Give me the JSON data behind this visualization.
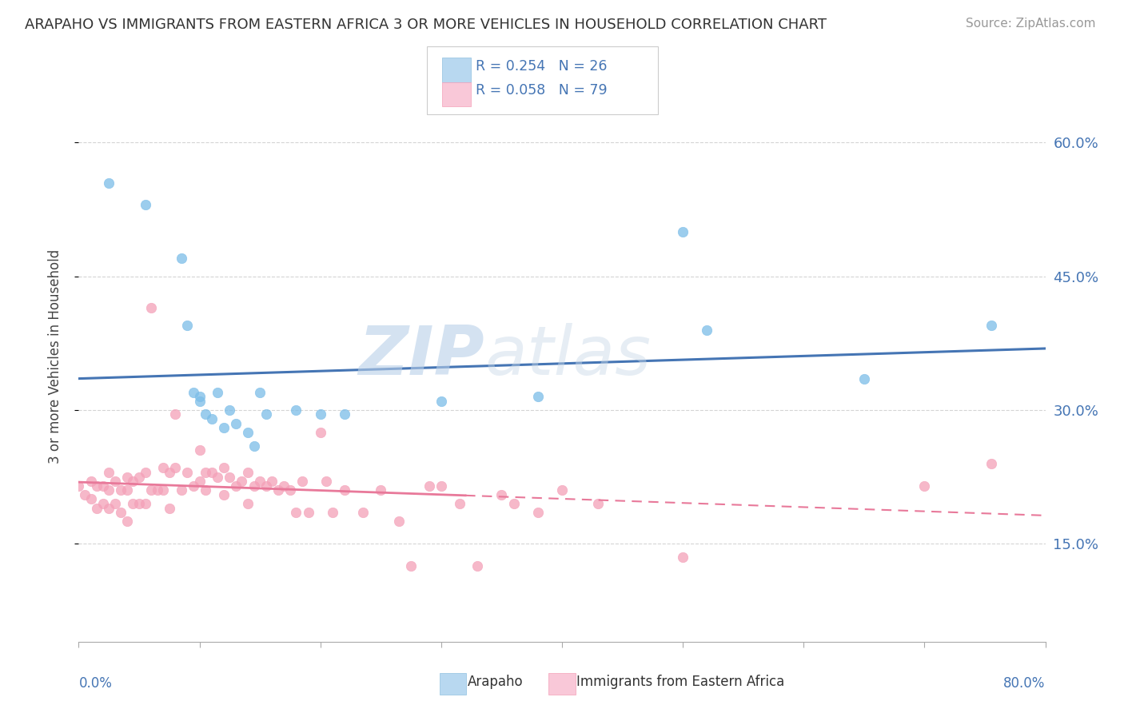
{
  "title": "ARAPAHO VS IMMIGRANTS FROM EASTERN AFRICA 3 OR MORE VEHICLES IN HOUSEHOLD CORRELATION CHART",
  "source": "Source: ZipAtlas.com",
  "ylabel": "3 or more Vehicles in Household",
  "ytick_labels": [
    "15.0%",
    "30.0%",
    "45.0%",
    "60.0%"
  ],
  "ytick_values": [
    0.15,
    0.3,
    0.45,
    0.6
  ],
  "xlim": [
    0.0,
    0.8
  ],
  "ylim": [
    0.04,
    0.68
  ],
  "legend_r_arapaho": "R = 0.254",
  "legend_n_arapaho": "N = 26",
  "legend_r_eastern": "R = 0.058",
  "legend_n_eastern": "N = 79",
  "watermark": "ZIPatlas",
  "arapaho_color": "#7bbde8",
  "arapaho_edge": "#7bbde8",
  "eastern_color": "#f4a0b8",
  "eastern_edge": "#f4a0b8",
  "trend_arapaho_color": "#4575b4",
  "trend_eastern_color": "#e8799a",
  "background_color": "#ffffff",
  "grid_color": "#d0d0d0",
  "arapaho_points_x": [
    0.025,
    0.055,
    0.085,
    0.09,
    0.095,
    0.1,
    0.1,
    0.105,
    0.11,
    0.115,
    0.12,
    0.125,
    0.13,
    0.14,
    0.145,
    0.15,
    0.155,
    0.18,
    0.2,
    0.22,
    0.3,
    0.38,
    0.5,
    0.52,
    0.65,
    0.755
  ],
  "arapaho_points_y": [
    0.555,
    0.53,
    0.47,
    0.395,
    0.32,
    0.315,
    0.31,
    0.295,
    0.29,
    0.32,
    0.28,
    0.3,
    0.285,
    0.275,
    0.26,
    0.32,
    0.295,
    0.3,
    0.295,
    0.295,
    0.31,
    0.315,
    0.5,
    0.39,
    0.335,
    0.395
  ],
  "eastern_points_x": [
    0.0,
    0.005,
    0.01,
    0.01,
    0.015,
    0.015,
    0.02,
    0.02,
    0.025,
    0.025,
    0.025,
    0.03,
    0.03,
    0.035,
    0.035,
    0.04,
    0.04,
    0.04,
    0.045,
    0.045,
    0.05,
    0.05,
    0.055,
    0.055,
    0.06,
    0.06,
    0.065,
    0.07,
    0.07,
    0.075,
    0.075,
    0.08,
    0.08,
    0.085,
    0.09,
    0.095,
    0.1,
    0.1,
    0.105,
    0.105,
    0.11,
    0.115,
    0.12,
    0.12,
    0.125,
    0.13,
    0.135,
    0.14,
    0.14,
    0.145,
    0.15,
    0.155,
    0.16,
    0.165,
    0.17,
    0.175,
    0.18,
    0.185,
    0.19,
    0.2,
    0.205,
    0.21,
    0.22,
    0.235,
    0.25,
    0.265,
    0.275,
    0.29,
    0.3,
    0.315,
    0.33,
    0.35,
    0.36,
    0.38,
    0.4,
    0.43,
    0.5,
    0.7,
    0.755
  ],
  "eastern_points_y": [
    0.215,
    0.205,
    0.22,
    0.2,
    0.215,
    0.19,
    0.215,
    0.195,
    0.23,
    0.21,
    0.19,
    0.22,
    0.195,
    0.21,
    0.185,
    0.225,
    0.21,
    0.175,
    0.22,
    0.195,
    0.225,
    0.195,
    0.23,
    0.195,
    0.415,
    0.21,
    0.21,
    0.235,
    0.21,
    0.23,
    0.19,
    0.235,
    0.295,
    0.21,
    0.23,
    0.215,
    0.255,
    0.22,
    0.23,
    0.21,
    0.23,
    0.225,
    0.235,
    0.205,
    0.225,
    0.215,
    0.22,
    0.23,
    0.195,
    0.215,
    0.22,
    0.215,
    0.22,
    0.21,
    0.215,
    0.21,
    0.185,
    0.22,
    0.185,
    0.275,
    0.22,
    0.185,
    0.21,
    0.185,
    0.21,
    0.175,
    0.125,
    0.215,
    0.215,
    0.195,
    0.125,
    0.205,
    0.195,
    0.185,
    0.21,
    0.195,
    0.135,
    0.215,
    0.24
  ]
}
